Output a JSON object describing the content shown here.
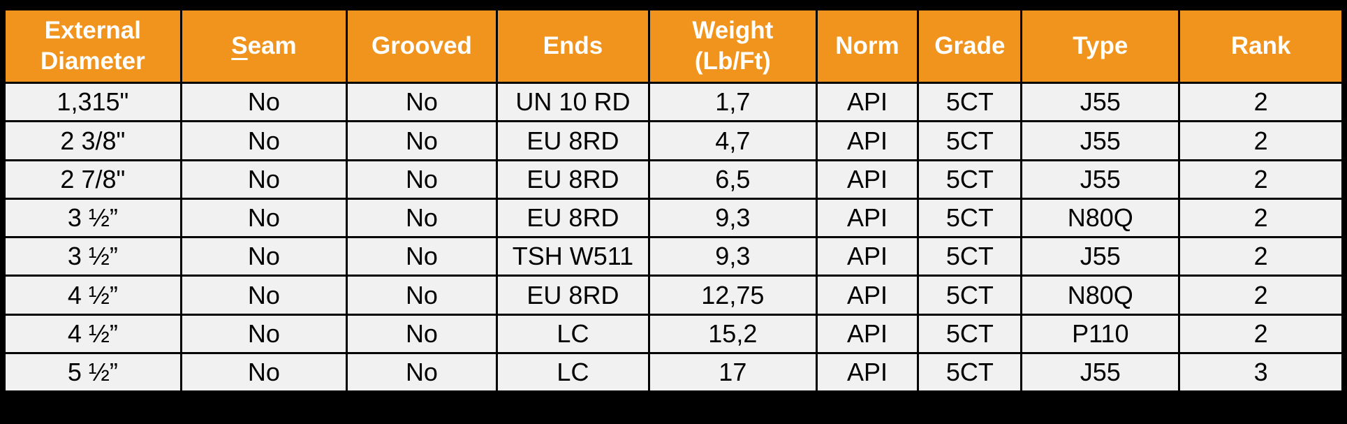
{
  "colors": {
    "header_bg": "#F0941E",
    "header_text": "#FFFFFF",
    "cell_bg": "#F1F1F1",
    "cell_text": "#000000",
    "grid": "#000000",
    "frame": "#000000"
  },
  "table": {
    "columns": [
      {
        "id": "external-diameter",
        "lines": [
          "External",
          "Diameter"
        ]
      },
      {
        "id": "seam",
        "lines": [
          "Seam"
        ],
        "underline_first_char": true,
        "first_char": "S",
        "rest": "eam"
      },
      {
        "id": "grooved",
        "lines": [
          "Grooved"
        ]
      },
      {
        "id": "ends",
        "lines": [
          "Ends"
        ]
      },
      {
        "id": "weight-lb-ft",
        "lines": [
          "Weight",
          "(Lb/Ft)"
        ]
      },
      {
        "id": "norm",
        "lines": [
          "Norm"
        ]
      },
      {
        "id": "grade",
        "lines": [
          "Grade"
        ]
      },
      {
        "id": "type",
        "lines": [
          "Type"
        ]
      },
      {
        "id": "rank",
        "lines": [
          "Rank"
        ]
      }
    ],
    "column_widths_pct": [
      13.2,
      12.4,
      11.2,
      11.4,
      12.5,
      7.6,
      7.7,
      11.8,
      12.2
    ],
    "rows": [
      [
        "1,315\"",
        "No",
        "No",
        "UN 10 RD",
        "1,7",
        "API",
        "5CT",
        "J55",
        "2"
      ],
      [
        "2 3/8\"",
        "No",
        "No",
        "EU 8RD",
        "4,7",
        "API",
        "5CT",
        "J55",
        "2"
      ],
      [
        "2 7/8\"",
        "No",
        "No",
        "EU 8RD",
        "6,5",
        "API",
        "5CT",
        "J55",
        "2"
      ],
      [
        "3 ½”",
        "No",
        "No",
        "EU 8RD",
        "9,3",
        "API",
        "5CT",
        "N80Q",
        "2"
      ],
      [
        "3 ½”",
        "No",
        "No",
        "TSH W511",
        "9,3",
        "API",
        "5CT",
        "J55",
        "2"
      ],
      [
        "4 ½”",
        "No",
        "No",
        "EU 8RD",
        "12,75",
        "API",
        "5CT",
        "N80Q",
        "2"
      ],
      [
        "4 ½”",
        "No",
        "No",
        "LC",
        "15,2",
        "API",
        "5CT",
        "P110",
        "2"
      ],
      [
        "5 ½”",
        "No",
        "No",
        "LC",
        "17",
        "API",
        "5CT",
        "J55",
        "3"
      ]
    ]
  }
}
